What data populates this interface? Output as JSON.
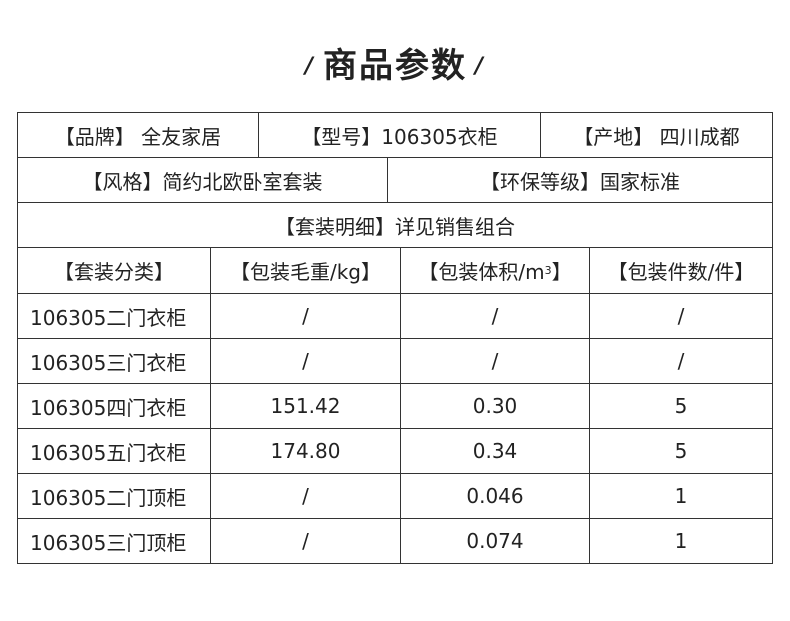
{
  "title": "商品参数",
  "info": {
    "brand": "【品牌】 全友家居",
    "model": "【型号】106305衣柜",
    "origin": "【产地】 四川成都",
    "style": "【风格】简约北欧卧室套装",
    "eco_level": "【环保等级】国家标准",
    "set_detail": "【套装明细】详见销售组合"
  },
  "columns": [
    "【套装分类】",
    "【包装毛重/kg】",
    "【包装体积/m",
    "】",
    "【包装件数/件】"
  ],
  "volume_sup": "3",
  "rows": [
    {
      "name": "106305二门衣柜",
      "weight": "/",
      "volume": "/",
      "pieces": "/"
    },
    {
      "name": "106305三门衣柜",
      "weight": "/",
      "volume": "/",
      "pieces": "/"
    },
    {
      "name": "106305四门衣柜",
      "weight": "151.42",
      "volume": "0.30",
      "pieces": "5"
    },
    {
      "name": "106305五门衣柜",
      "weight": "174.80",
      "volume": "0.34",
      "pieces": "5"
    },
    {
      "name": "106305二门顶柜",
      "weight": "/",
      "volume": "0.046",
      "pieces": "1"
    },
    {
      "name": "106305三门顶柜",
      "weight": "/",
      "volume": "0.074",
      "pieces": "1"
    }
  ]
}
